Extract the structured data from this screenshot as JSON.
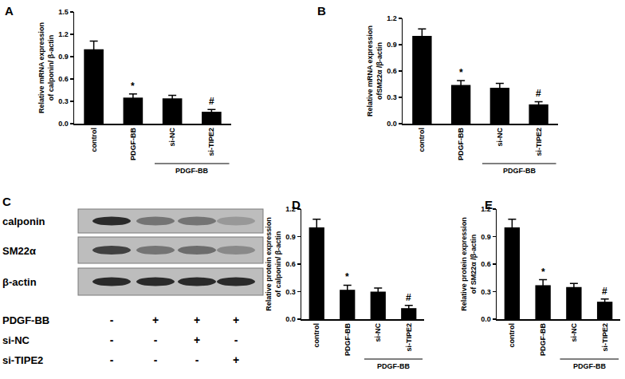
{
  "chart_data": [
    {
      "type": "bar",
      "title": "A",
      "categories": [
        "control",
        "PDGF-BB",
        "si-NC",
        "si-TIPE2"
      ],
      "values": [
        1.0,
        0.35,
        0.34,
        0.16
      ],
      "error": [
        0.11,
        0.05,
        0.04,
        0.03
      ],
      "color": "#000000",
      "ylabel": "Relative mRNA expression\nof calponin/ β-actin",
      "ylim": [
        0,
        1.5
      ],
      "yticks": [
        {
          "value": 0,
          "label": "0.0"
        },
        0.3,
        0.6,
        0.9,
        1.2,
        1.5
      ],
      "annotations": [
        {
          "category": "PDGF-BB",
          "text": "*"
        },
        {
          "category": "si-TIPE2",
          "text": "#"
        }
      ],
      "group": {
        "text": "PDGF-BB",
        "categories": [
          "si-NC",
          "si-TIPE2"
        ]
      }
    },
    {
      "type": "bar",
      "title": "B",
      "categories": [
        "control",
        "PDGF-BB",
        "si-NC",
        "si-TIPE2"
      ],
      "values": [
        1.0,
        0.44,
        0.41,
        0.22
      ],
      "error": [
        0.08,
        0.05,
        0.05,
        0.03
      ],
      "color": "#000000",
      "ylabel": "Relative mRNA expression\nofSM22α /β-actin",
      "ylim": [
        0,
        1.2
      ],
      "yticks": [
        {
          "value": 0,
          "label": "0.0"
        },
        0.3,
        0.6,
        0.9,
        1.2
      ],
      "annotations": [
        {
          "category": "PDGF-BB",
          "text": "*"
        },
        {
          "category": "si-TIPE2",
          "text": "#"
        }
      ],
      "group": {
        "text": "PDGF-BB",
        "categories": [
          "si-NC",
          "si-TIPE2"
        ]
      }
    },
    {
      "type": "bar",
      "title": "D",
      "categories": [
        "control",
        "PDGF-BB",
        "si-NC",
        "si-TIPE2"
      ],
      "values": [
        1.0,
        0.32,
        0.3,
        0.12
      ],
      "error": [
        0.09,
        0.05,
        0.04,
        0.03
      ],
      "color": "#000000",
      "ylabel": "Relative protein expression\nof calponin/ β-actin",
      "ylim": [
        0,
        1.2
      ],
      "yticks": [
        {
          "value": 0,
          "label": "0.0"
        },
        0.3,
        0.6,
        0.9,
        1.2
      ],
      "annotations": [
        {
          "category": "PDGF-BB",
          "text": "*"
        },
        {
          "category": "si-TIPE2",
          "text": "#"
        }
      ],
      "group": {
        "text": "PDGF-BB",
        "categories": [
          "si-NC",
          "si-TIPE2"
        ]
      }
    },
    {
      "type": "bar",
      "title": "E",
      "categories": [
        "control",
        "PDGF-BB",
        "si-NC",
        "si-TIPE2"
      ],
      "values": [
        1.0,
        0.37,
        0.35,
        0.19
      ],
      "error": [
        0.09,
        0.06,
        0.04,
        0.03
      ],
      "color": "#000000",
      "ylabel": "Relative protein expression\nof SM22α /β-actin",
      "ylim": [
        0,
        1.2
      ],
      "yticks": [
        {
          "value": 0,
          "label": "0.0"
        },
        0.3,
        0.6,
        0.9,
        1.2
      ],
      "annotations": [
        {
          "category": "PDGF-BB",
          "text": "*"
        },
        {
          "category": "si-TIPE2",
          "text": "#"
        }
      ],
      "group": {
        "text": "PDGF-BB",
        "categories": [
          "si-NC",
          "si-TIPE2"
        ]
      }
    }
  ],
  "blot": {
    "title": "C",
    "rows": [
      {
        "label": "calponin",
        "bands": [
          1.0,
          0.5,
          0.5,
          0.25
        ]
      },
      {
        "label": "SM22α",
        "bands": [
          0.85,
          0.5,
          0.55,
          0.35
        ]
      },
      {
        "label": "β-actin",
        "bands": [
          1.0,
          1.0,
          1.0,
          1.0
        ]
      }
    ],
    "conditions": [
      {
        "label": "PDGF-BB",
        "signs": [
          "-",
          "+",
          "+",
          "+"
        ]
      },
      {
        "label": "si-NC",
        "signs": [
          "-",
          "-",
          "+",
          "-"
        ]
      },
      {
        "label": "si-TIPE2",
        "signs": [
          "-",
          "-",
          "-",
          "+"
        ]
      }
    ]
  }
}
